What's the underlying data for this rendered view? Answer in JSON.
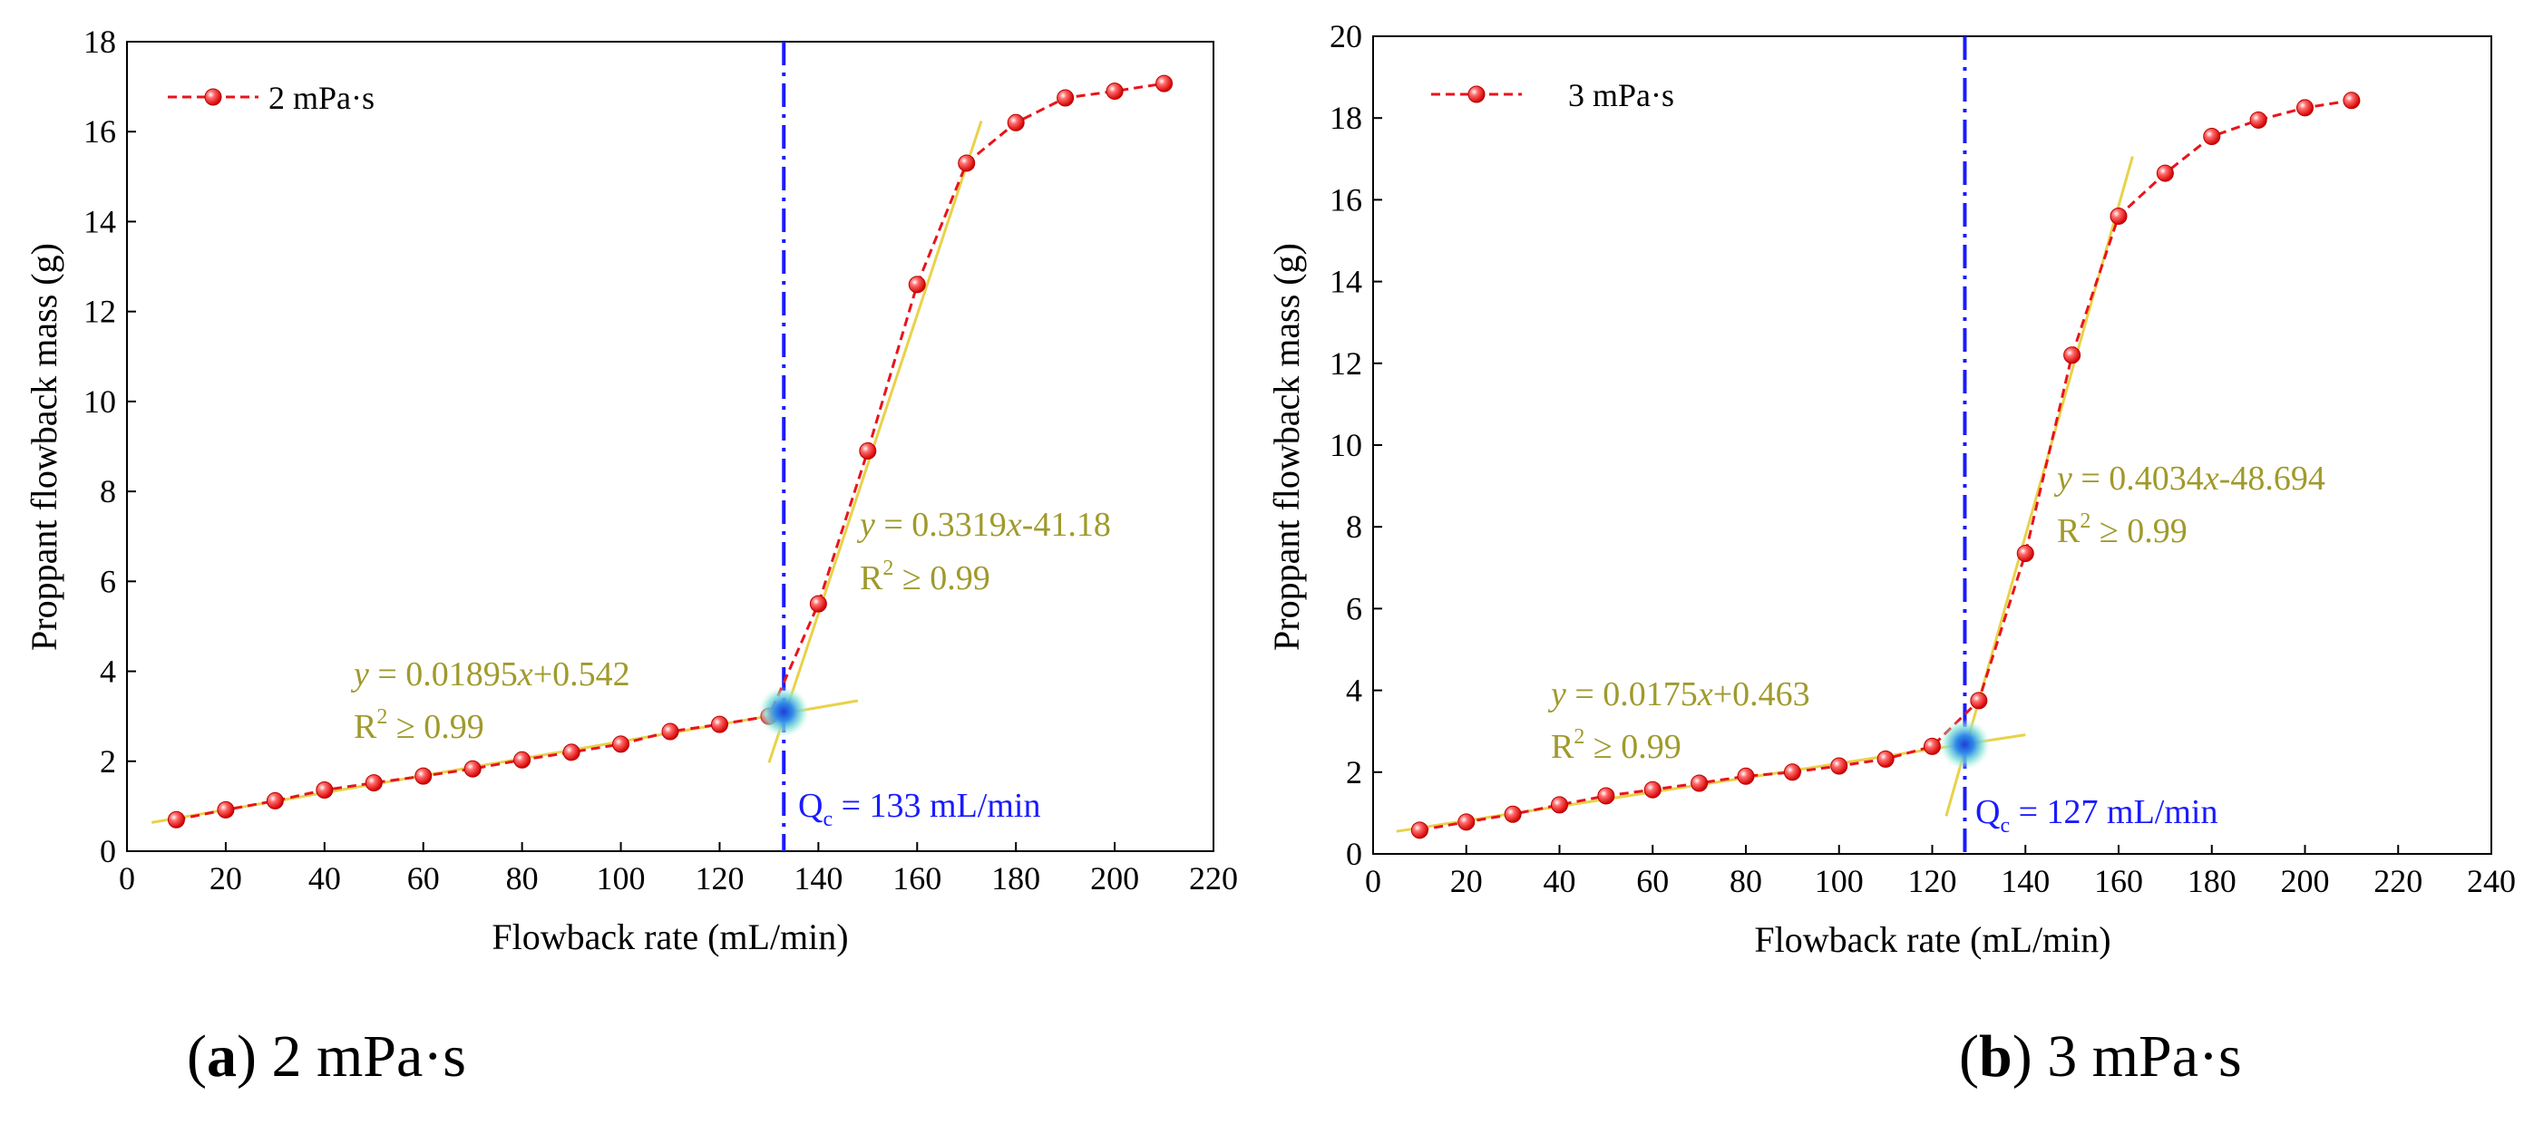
{
  "panels": [
    {
      "caption_letter": "a",
      "caption_text": "2 mPa·s",
      "legend_label": "2 mPa·s",
      "fit_low": {
        "eq_y": "y",
        "eq_mid": " = 0.01895",
        "eq_x": "x",
        "eq_tail": "+0.542",
        "r2": "R",
        "r2_sup": "2",
        "r2_tail": " ≥ 0.99"
      },
      "fit_high": {
        "eq_y": "y",
        "eq_mid": " = 0.3319",
        "eq_x": "x",
        "eq_tail": "-41.18",
        "r2": "R",
        "r2_sup": "2",
        "r2_tail": " ≥ 0.99"
      },
      "qc": {
        "q": "Q",
        "sub": "c",
        "tail": " = 133 mL/min"
      }
    },
    {
      "caption_letter": "b",
      "caption_text": "3 mPa·s",
      "legend_label": "3 mPa·s",
      "fit_low": {
        "eq_y": "y",
        "eq_mid": " = 0.0175",
        "eq_x": "x",
        "eq_tail": "+0.463",
        "r2": "R",
        "r2_sup": "2",
        "r2_tail": " ≥ 0.99"
      },
      "fit_high": {
        "eq_y": "y",
        "eq_mid": " = 0.4034",
        "eq_x": "x",
        "eq_tail": "-48.694",
        "r2": "R",
        "r2_sup": "2",
        "r2_tail": " ≥ 0.99"
      },
      "qc": {
        "q": "Q",
        "sub": "c",
        "tail": " = 127 mL/min"
      }
    }
  ],
  "chart_data": [
    {
      "type": "line",
      "xlabel": "Flowback rate (mL/min)",
      "ylabel": "Proppant flowback mass (g)",
      "xlim": [
        0,
        220
      ],
      "ylim": [
        0,
        18
      ],
      "xticks": [
        0,
        20,
        40,
        60,
        80,
        100,
        120,
        140,
        160,
        180,
        200,
        220
      ],
      "yticks": [
        0,
        2,
        4,
        6,
        8,
        10,
        12,
        14,
        16,
        18
      ],
      "legend_position": "top-left",
      "series": [
        {
          "name": "2 mPa·s",
          "color": "#e8141c",
          "x": [
            10,
            20,
            30,
            40,
            50,
            60,
            70,
            80,
            90,
            100,
            110,
            120,
            130,
            140,
            150,
            160,
            170,
            180,
            190,
            200,
            210
          ],
          "y": [
            0.7,
            0.92,
            1.12,
            1.36,
            1.52,
            1.67,
            1.83,
            2.03,
            2.2,
            2.38,
            2.66,
            2.82,
            3.0,
            5.5,
            8.9,
            12.6,
            15.3,
            16.2,
            16.75,
            16.9,
            17.07
          ]
        }
      ],
      "fits": [
        {
          "slope": 0.01895,
          "intercept": 0.542,
          "x_range": [
            5,
            148
          ],
          "color": "#e8d24a"
        },
        {
          "slope": 0.3319,
          "intercept": -41.18,
          "x_range": [
            130,
            173
          ],
          "color": "#e8d24a"
        }
      ],
      "critical_x": 133,
      "critical_y": 3.1,
      "vline_color": "#1a1aff"
    },
    {
      "type": "line",
      "xlabel": "Flowback rate (mL/min)",
      "ylabel": "Proppant flowback mass (g)",
      "xlim": [
        0,
        240
      ],
      "ylim": [
        0,
        20
      ],
      "xticks": [
        0,
        20,
        40,
        60,
        80,
        100,
        120,
        140,
        160,
        180,
        200,
        220,
        240
      ],
      "yticks": [
        0,
        2,
        4,
        6,
        8,
        10,
        12,
        14,
        16,
        18,
        20
      ],
      "legend_position": "top-left",
      "series": [
        {
          "name": "3 mPa·s",
          "color": "#e8141c",
          "x": [
            10,
            20,
            30,
            40,
            50,
            60,
            70,
            80,
            90,
            100,
            110,
            120,
            130,
            140,
            150,
            160,
            170,
            180,
            190,
            200,
            210
          ],
          "y": [
            0.58,
            0.78,
            0.97,
            1.2,
            1.42,
            1.57,
            1.73,
            1.9,
            2.0,
            2.15,
            2.32,
            2.63,
            3.75,
            7.35,
            12.2,
            15.6,
            16.65,
            17.55,
            17.95,
            18.25,
            18.43
          ]
        }
      ],
      "fits": [
        {
          "slope": 0.0175,
          "intercept": 0.463,
          "x_range": [
            5,
            140
          ],
          "color": "#e8d24a"
        },
        {
          "slope": 0.4034,
          "intercept": -48.694,
          "x_range": [
            123,
            163
          ],
          "color": "#e8d24a"
        }
      ],
      "critical_x": 127,
      "critical_y": 2.68,
      "vline_color": "#1a1aff"
    }
  ]
}
